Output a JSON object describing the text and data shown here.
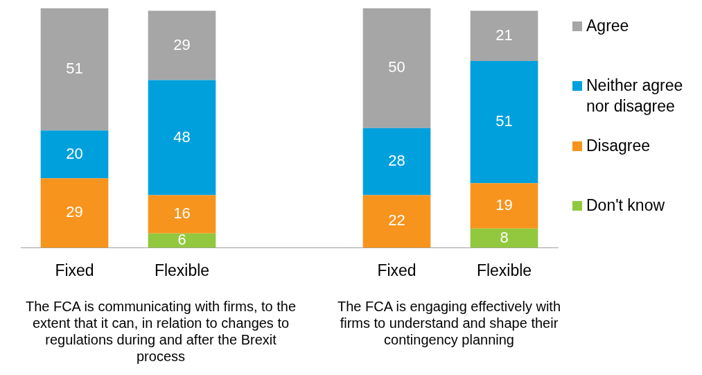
{
  "chart_data": {
    "type": "bar",
    "stacked": true,
    "data_labels": true,
    "legend": "right",
    "grid": false,
    "categories": [
      "Fixed",
      "Flexible",
      null,
      "Fixed",
      "Flexible"
    ],
    "series": [
      {
        "name": "Don't know",
        "color": "#92c83e",
        "values": [
          null,
          6,
          null,
          null,
          8
        ]
      },
      {
        "name": "Disagree",
        "color": "#f7941d",
        "values": [
          29,
          16,
          null,
          22,
          19
        ]
      },
      {
        "name": "Neither agree nor disagree",
        "color": "#00a0dc",
        "values": [
          20,
          48,
          null,
          28,
          51
        ]
      },
      {
        "name": "Agree",
        "color": "#a6a6a6",
        "values": [
          51,
          29,
          null,
          50,
          21
        ]
      }
    ],
    "annotations": [
      "The FCA is communicating with firms, to the extent that it can, in relation to changes to regulations during and after the Brexit process",
      "The FCA is engaging effectively with firms to understand and shape their contingency planning"
    ]
  }
}
